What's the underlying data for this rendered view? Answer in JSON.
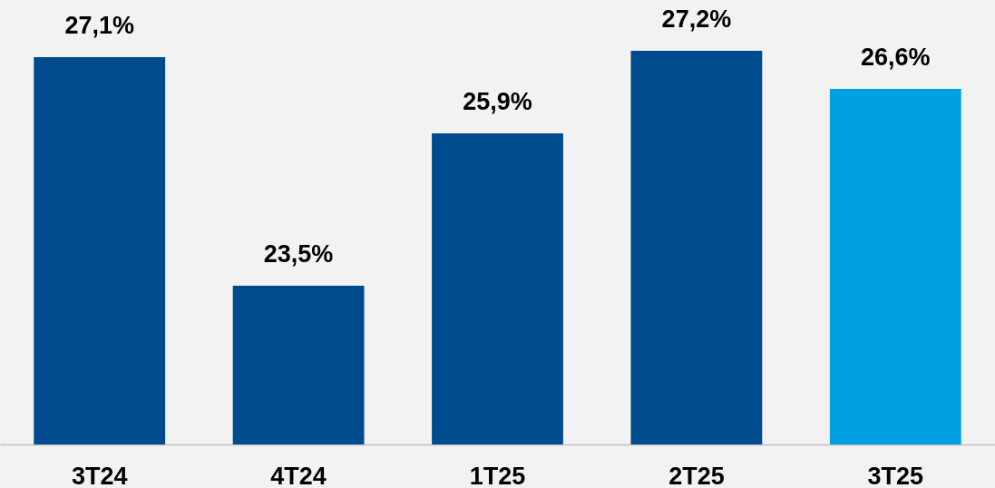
{
  "chart_data": {
    "type": "bar",
    "categories": [
      "3T24",
      "4T24",
      "1T25",
      "2T25",
      "3T25"
    ],
    "values": [
      27.1,
      23.5,
      25.9,
      27.2,
      26.6
    ],
    "colors": [
      "#004b8d",
      "#004b8d",
      "#004b8d",
      "#004b8d",
      "#00a0e3"
    ],
    "value_labels": [
      "27,1%",
      "23,5%",
      "25,9%",
      "27,2%",
      "26,6%"
    ],
    "ylim": [
      21,
      28
    ]
  }
}
